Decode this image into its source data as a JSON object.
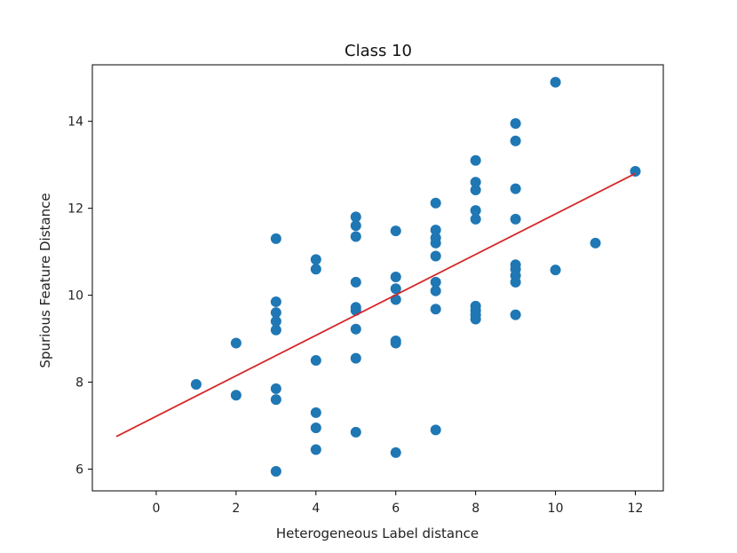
{
  "chart_data": {
    "type": "scatter",
    "title": "Class 10",
    "xlabel": "Heterogeneous Label distance",
    "ylabel": "Spurious Feature Distance",
    "xlim": [
      -1.6,
      12.7
    ],
    "ylim": [
      5.5,
      15.3
    ],
    "xticks": [
      0,
      2,
      4,
      6,
      8,
      10,
      12
    ],
    "yticks": [
      6,
      8,
      10,
      12,
      14
    ],
    "grid": false,
    "series": [
      {
        "type": "scatter",
        "color": "#1f77b4",
        "points": [
          [
            1,
            7.95
          ],
          [
            2,
            8.9
          ],
          [
            2,
            7.7
          ],
          [
            3,
            11.3
          ],
          [
            3,
            9.85
          ],
          [
            3,
            9.6
          ],
          [
            3,
            9.4
          ],
          [
            3,
            9.2
          ],
          [
            3,
            7.85
          ],
          [
            3,
            7.6
          ],
          [
            3,
            5.95
          ],
          [
            4,
            10.82
          ],
          [
            4,
            10.6
          ],
          [
            4,
            8.5
          ],
          [
            4,
            7.3
          ],
          [
            4,
            6.95
          ],
          [
            4,
            6.45
          ],
          [
            5,
            11.8
          ],
          [
            5,
            11.6
          ],
          [
            5,
            11.35
          ],
          [
            5,
            10.3
          ],
          [
            5,
            9.72
          ],
          [
            5,
            9.65
          ],
          [
            5,
            9.22
          ],
          [
            5,
            8.55
          ],
          [
            5,
            6.85
          ],
          [
            6,
            11.48
          ],
          [
            6,
            10.42
          ],
          [
            6,
            10.15
          ],
          [
            6,
            9.9
          ],
          [
            6,
            8.95
          ],
          [
            6,
            8.9
          ],
          [
            6,
            6.38
          ],
          [
            7,
            12.12
          ],
          [
            7,
            11.5
          ],
          [
            7,
            11.32
          ],
          [
            7,
            11.2
          ],
          [
            7,
            10.9
          ],
          [
            7,
            10.3
          ],
          [
            7,
            10.1
          ],
          [
            7,
            9.68
          ],
          [
            7,
            6.9
          ],
          [
            8,
            13.1
          ],
          [
            8,
            12.6
          ],
          [
            8,
            12.42
          ],
          [
            8,
            11.95
          ],
          [
            8,
            11.75
          ],
          [
            8,
            9.75
          ],
          [
            8,
            9.65
          ],
          [
            8,
            9.55
          ],
          [
            8,
            9.45
          ],
          [
            9,
            13.95
          ],
          [
            9,
            13.55
          ],
          [
            9,
            12.45
          ],
          [
            9,
            11.75
          ],
          [
            9,
            10.7
          ],
          [
            9,
            10.6
          ],
          [
            9,
            10.45
          ],
          [
            9,
            10.3
          ],
          [
            9,
            9.55
          ],
          [
            10,
            14.9
          ],
          [
            10,
            10.58
          ],
          [
            11,
            11.2
          ],
          [
            12,
            12.85
          ]
        ]
      },
      {
        "type": "line",
        "color": "#d62728",
        "points": [
          [
            -1,
            6.75
          ],
          [
            12,
            12.8
          ]
        ]
      }
    ]
  }
}
